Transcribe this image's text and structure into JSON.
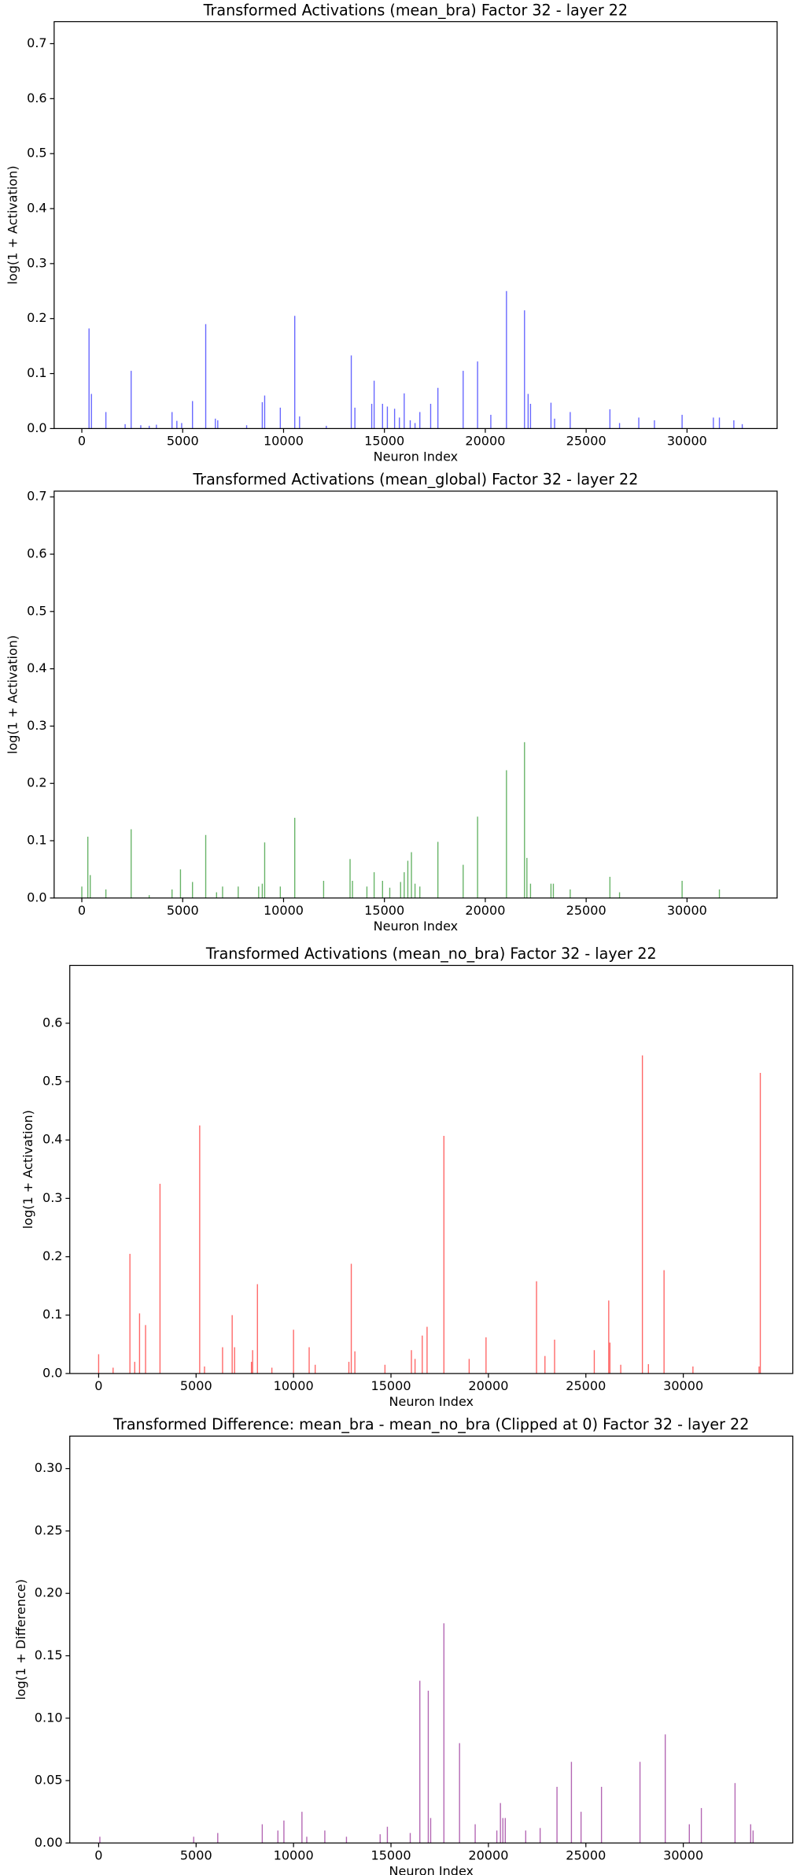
{
  "chart_data": [
    {
      "type": "bar",
      "title": "Transformed Activations (mean_bra) Factor 32 - layer 22",
      "xlabel": "Neuron Index",
      "ylabel": "log(1 + Activation)",
      "color": "blue",
      "x": [
        358,
        477,
        1193,
        2147,
        2445,
        2922,
        3340,
        3697,
        4472,
        4711,
        4949,
        5486,
        6142,
        6619,
        6738,
        8170,
        8945,
        9064,
        9839,
        10555,
        10793,
        12120,
        13357,
        13536,
        14371,
        14490,
        14907,
        15146,
        15504,
        15742,
        15981,
        16279,
        16517,
        16756,
        17292,
        17651,
        18903,
        19618,
        20274,
        21050,
        21944,
        22123,
        22242,
        23256,
        23435,
        24210,
        26178,
        26655,
        27609,
        28385,
        29756,
        31307,
        31605,
        32321,
        32738
      ],
      "values": [
        0.182,
        0.063,
        0.03,
        0.008,
        0.105,
        0.006,
        0.005,
        0.007,
        0.03,
        0.014,
        0.01,
        0.05,
        0.19,
        0.018,
        0.015,
        0.006,
        0.048,
        0.06,
        0.038,
        0.205,
        0.022,
        0.005,
        0.133,
        0.038,
        0.045,
        0.087,
        0.045,
        0.04,
        0.036,
        0.02,
        0.064,
        0.015,
        0.01,
        0.03,
        0.045,
        0.074,
        0.105,
        0.122,
        0.025,
        0.25,
        0.215,
        0.063,
        0.045,
        0.047,
        0.018,
        0.03,
        0.035,
        0.01,
        0.02,
        0.015,
        0.025,
        0.02,
        0.02,
        0.015,
        0.008
      ],
      "xlim": [
        -1372,
        34467
      ],
      "ylim": [
        0,
        0.74
      ],
      "xticks": [
        0,
        5000,
        10000,
        15000,
        20000,
        25000,
        30000
      ],
      "yticks": [
        {
          "value": 0,
          "label": "0.0"
        },
        0.1,
        0.2,
        0.3,
        0.4,
        0.5,
        0.6,
        0.7
      ]
    },
    {
      "type": "bar",
      "title": "Transformed Activations (mean_global) Factor 32 - layer 22",
      "xlabel": "Neuron Index",
      "ylabel": "log(1 + Activation)",
      "color": "green",
      "x": [
        0,
        298,
        417,
        1193,
        2445,
        3340,
        4472,
        4890,
        5486,
        6142,
        6679,
        6977,
        7753,
        8766,
        8945,
        9064,
        9839,
        10555,
        11986,
        13297,
        13417,
        14132,
        14490,
        14907,
        15265,
        15802,
        15981,
        16160,
        16339,
        16517,
        16756,
        17651,
        18903,
        19618,
        21050,
        21944,
        22063,
        22242,
        23256,
        23375,
        24210,
        26178,
        26655,
        29756,
        31605
      ],
      "values": [
        0.02,
        0.107,
        0.04,
        0.015,
        0.12,
        0.005,
        0.015,
        0.05,
        0.028,
        0.11,
        0.01,
        0.02,
        0.02,
        0.02,
        0.025,
        0.097,
        0.02,
        0.14,
        0.03,
        0.068,
        0.03,
        0.02,
        0.045,
        0.03,
        0.018,
        0.028,
        0.045,
        0.065,
        0.08,
        0.025,
        0.02,
        0.098,
        0.058,
        0.142,
        0.223,
        0.272,
        0.07,
        0.025,
        0.025,
        0.025,
        0.015,
        0.037,
        0.01,
        0.03,
        0.015
      ],
      "xlim": [
        -1372,
        34467
      ],
      "ylim": [
        0,
        0.71
      ],
      "xticks": [
        0,
        5000,
        10000,
        15000,
        20000,
        25000,
        30000
      ],
      "yticks": [
        {
          "value": 0,
          "label": "0.0"
        },
        0.1,
        0.2,
        0.3,
        0.4,
        0.5,
        0.6,
        0.7
      ]
    },
    {
      "type": "bar",
      "title": "Transformed Activations (mean_no_bra) Factor 32 - layer 22",
      "xlabel": "Neuron Index",
      "ylabel": "log(1 + Activation)",
      "color": "red",
      "x": [
        0,
        741,
        1605,
        1852,
        2099,
        2407,
        3148,
        5185,
        5432,
        6358,
        6852,
        6975,
        7840,
        7901,
        8148,
        8889,
        10000,
        10802,
        11111,
        12840,
        12963,
        13148,
        14691,
        16049,
        16235,
        16605,
        16852,
        17716,
        19012,
        19877,
        22469,
        22901,
        23395,
        25432,
        26173,
        26235,
        26790,
        27901,
        28210,
        29012,
        30494,
        33889,
        33951
      ],
      "values": [
        0.033,
        0.01,
        0.205,
        0.02,
        0.103,
        0.083,
        0.325,
        0.425,
        0.012,
        0.045,
        0.1,
        0.045,
        0.02,
        0.04,
        0.153,
        0.01,
        0.075,
        0.045,
        0.015,
        0.02,
        0.188,
        0.038,
        0.015,
        0.04,
        0.025,
        0.065,
        0.08,
        0.407,
        0.025,
        0.062,
        0.158,
        0.03,
        0.058,
        0.04,
        0.125,
        0.053,
        0.015,
        0.545,
        0.016,
        0.177,
        0.012,
        0.012,
        0.515
      ],
      "xlim": [
        -1481,
        35617
      ],
      "ylim": [
        0,
        0.699
      ],
      "xticks": [
        0,
        5000,
        10000,
        15000,
        20000,
        25000,
        30000
      ],
      "yticks": [
        {
          "value": 0,
          "label": "0.0"
        },
        0.1,
        0.2,
        0.3,
        0.4,
        0.5,
        0.6
      ]
    },
    {
      "type": "bar",
      "title": "Transformed Difference: mean_bra - mean_no_bra (Clipped at 0) Factor 32 - layer 22",
      "xlabel": "Neuron Index",
      "ylabel": "log(1 + Difference)",
      "color": "purple",
      "x": [
        62,
        4877,
        6111,
        8395,
        9198,
        9506,
        10432,
        10679,
        11605,
        12716,
        14444,
        14815,
        15988,
        16481,
        16914,
        17037,
        17716,
        18519,
        19321,
        20432,
        20617,
        20741,
        20864,
        21914,
        22654,
        23519,
        24259,
        24753,
        25802,
        27778,
        29074,
        30309,
        30926,
        32654,
        33457,
        33580
      ],
      "values": [
        0.005,
        0.005,
        0.008,
        0.015,
        0.01,
        0.018,
        0.025,
        0.005,
        0.01,
        0.005,
        0.007,
        0.013,
        0.008,
        0.13,
        0.122,
        0.02,
        0.176,
        0.08,
        0.015,
        0.01,
        0.032,
        0.02,
        0.02,
        0.01,
        0.012,
        0.045,
        0.065,
        0.025,
        0.045,
        0.065,
        0.087,
        0.015,
        0.028,
        0.048,
        0.015,
        0.01
      ],
      "xlim": [
        -1481,
        35617
      ],
      "ylim": [
        0,
        0.326
      ],
      "xticks": [
        0,
        5000,
        10000,
        15000,
        20000,
        25000,
        30000
      ],
      "yticks": [
        {
          "value": 0,
          "label": "0.00"
        },
        0.05,
        {
          "value": 0.1,
          "label": "0.10"
        },
        0.15,
        {
          "value": 0.2,
          "label": "0.20"
        },
        0.25,
        {
          "value": 0.3,
          "label": "0.30"
        }
      ]
    }
  ]
}
